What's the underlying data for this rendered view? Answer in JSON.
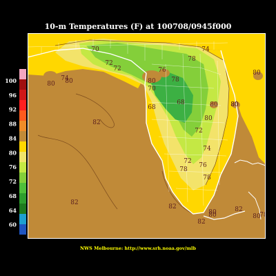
{
  "title": "10-m Temperatures (F) at 100708/0945f000",
  "footer": "NWS Melbourne: http://www.srh.noaa.gov/mlb",
  "colors": {
    "gulf_water": "#c08a38",
    "land_warm": "#ffd700",
    "atlantic_warm": "#ffd700",
    "band_74_76": "#f3e36a",
    "band_72": "#c4e844",
    "band_70": "#84cf3a",
    "band_68": "#3cb043",
    "label_text": "#5a1e1e",
    "coast_and_county_lines": "#ffffff"
  },
  "legend": {
    "ticks": [
      "100",
      "96",
      "92",
      "88",
      "84",
      "80",
      "76",
      "72",
      "68",
      "64",
      "60"
    ],
    "swatches": [
      "#f4a6c0",
      "#a01010",
      "#d01818",
      "#ff2020",
      "#ff5a1e",
      "#f08c28",
      "#c08a38",
      "#ffd700",
      "#f0e46a",
      "#c4e844",
      "#84cf3a",
      "#4fbf3a",
      "#2e9e2e",
      "#1f7a1f",
      "#1fa0d0",
      "#1f55c0"
    ]
  },
  "labels": [
    {
      "text": "72"
    },
    {
      "text": "70"
    },
    {
      "text": "72"
    },
    {
      "text": "72"
    },
    {
      "text": "74"
    },
    {
      "text": "78"
    },
    {
      "text": "80"
    },
    {
      "text": "74"
    },
    {
      "text": "80"
    },
    {
      "text": "76"
    },
    {
      "text": "78"
    },
    {
      "text": "70"
    },
    {
      "text": "80"
    },
    {
      "text": "80"
    },
    {
      "text": "68"
    },
    {
      "text": "68"
    },
    {
      "text": "72"
    },
    {
      "text": "80"
    },
    {
      "text": "80"
    },
    {
      "text": "82"
    },
    {
      "text": "72"
    },
    {
      "text": "74"
    },
    {
      "text": "78"
    },
    {
      "text": "76"
    },
    {
      "text": "78"
    },
    {
      "text": "82"
    },
    {
      "text": "82"
    },
    {
      "text": "80"
    },
    {
      "text": "82"
    },
    {
      "text": "80"
    },
    {
      "text": "82"
    },
    {
      "text": "80"
    },
    {
      "text": "78"
    },
    {
      "text": "80"
    },
    {
      "text": "80"
    }
  ]
}
